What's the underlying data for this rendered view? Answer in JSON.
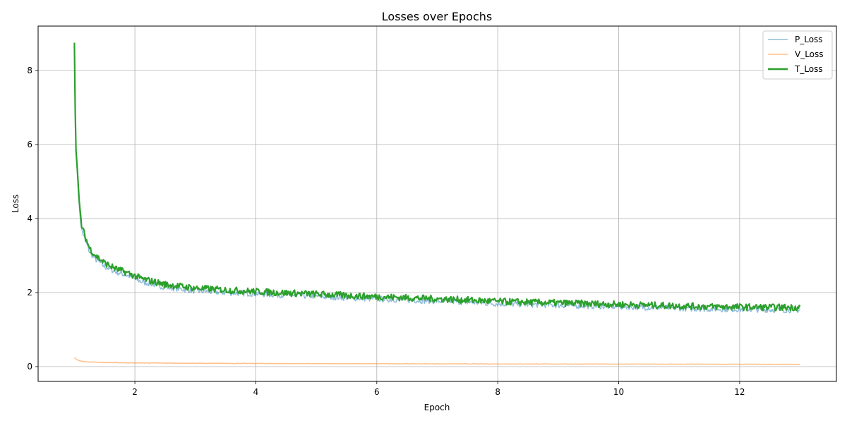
{
  "chart_data": {
    "type": "line",
    "title": "Losses over Epochs",
    "xlabel": "Epoch",
    "ylabel": "Loss",
    "xlim": [
      0.4,
      13.6
    ],
    "ylim": [
      -0.4,
      9.2
    ],
    "xticks": [
      2,
      4,
      6,
      8,
      10,
      12
    ],
    "yticks": [
      0,
      2,
      4,
      6,
      8
    ],
    "grid": true,
    "legend_position": "top-right",
    "series": [
      {
        "name": "P_Loss",
        "color": "#1f77b4",
        "opacity": 0.5,
        "x": [
          1.0,
          1.02,
          1.05,
          1.08,
          1.12,
          1.18,
          1.25,
          1.35,
          1.5,
          1.7,
          1.9,
          2.1,
          2.5,
          3.0,
          3.5,
          4.0,
          4.5,
          5.0,
          5.5,
          6.0,
          6.5,
          7.0,
          7.5,
          8.0,
          8.5,
          9.0,
          9.5,
          10.0,
          10.5,
          11.0,
          11.5,
          12.0,
          12.5,
          13.0
        ],
        "y": [
          8.6,
          5.9,
          5.2,
          4.3,
          3.7,
          3.4,
          3.1,
          2.9,
          2.7,
          2.55,
          2.45,
          2.3,
          2.15,
          2.05,
          2.0,
          1.97,
          1.93,
          1.9,
          1.86,
          1.83,
          1.8,
          1.77,
          1.74,
          1.7,
          1.68,
          1.66,
          1.64,
          1.62,
          1.6,
          1.58,
          1.56,
          1.55,
          1.54,
          1.53
        ]
      },
      {
        "name": "V_Loss",
        "color": "#ff7f0e",
        "opacity": 0.5,
        "x": [
          1.0,
          1.05,
          1.1,
          1.2,
          1.5,
          2.0,
          3.0,
          4.0,
          5.0,
          6.0,
          7.0,
          8.0,
          9.0,
          10.0,
          11.0,
          12.0,
          13.0
        ],
        "y": [
          0.24,
          0.18,
          0.15,
          0.13,
          0.11,
          0.1,
          0.09,
          0.085,
          0.08,
          0.078,
          0.075,
          0.072,
          0.07,
          0.068,
          0.066,
          0.064,
          0.062
        ]
      },
      {
        "name": "T_Loss",
        "color": "#2ca02c",
        "opacity": 1.0,
        "x": [
          1.0,
          1.02,
          1.05,
          1.08,
          1.12,
          1.18,
          1.25,
          1.35,
          1.5,
          1.7,
          1.9,
          2.1,
          2.5,
          3.0,
          3.5,
          4.0,
          4.5,
          5.0,
          5.5,
          6.0,
          6.5,
          7.0,
          7.5,
          8.0,
          8.5,
          9.0,
          9.5,
          10.0,
          10.5,
          11.0,
          11.5,
          12.0,
          12.5,
          13.0
        ],
        "y": [
          8.75,
          6.0,
          5.3,
          4.4,
          3.8,
          3.5,
          3.2,
          3.0,
          2.8,
          2.63,
          2.52,
          2.38,
          2.22,
          2.12,
          2.07,
          2.03,
          1.99,
          1.96,
          1.92,
          1.89,
          1.86,
          1.83,
          1.8,
          1.76,
          1.74,
          1.72,
          1.7,
          1.68,
          1.66,
          1.64,
          1.62,
          1.61,
          1.6,
          1.6
        ]
      }
    ]
  }
}
